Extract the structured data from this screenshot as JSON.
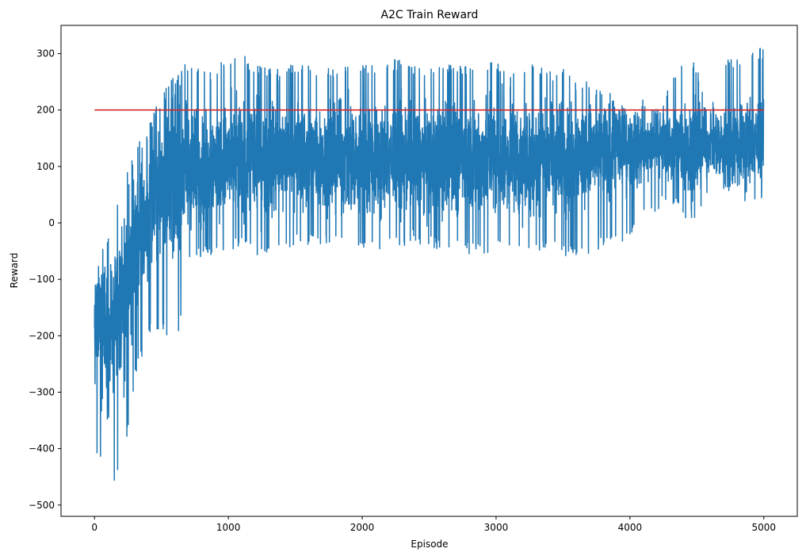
{
  "chart_data": {
    "type": "line",
    "title": "A2C Train Reward",
    "xlabel": "Episode",
    "ylabel": "Reward",
    "xlim": [
      -250,
      5250
    ],
    "ylim": [
      -520,
      350
    ],
    "x_ticks": [
      0,
      1000,
      2000,
      3000,
      4000,
      5000
    ],
    "x_tick_labels": [
      "0",
      "1000",
      "2000",
      "3000",
      "4000",
      "5000"
    ],
    "y_ticks": [
      -500,
      -400,
      -300,
      -200,
      -100,
      0,
      100,
      200,
      300
    ],
    "y_tick_labels": [
      "−500",
      "−400",
      "−300",
      "−200",
      "−100",
      "0",
      "100",
      "200",
      "300"
    ],
    "grid": false,
    "series": [
      {
        "role": "train-reward",
        "color": "#1f77b4",
        "episodes": 5000,
        "x_step": 100,
        "center": [
          -180,
          -200,
          -150,
          -50,
          20,
          80,
          90,
          95,
          100,
          105,
          110,
          110,
          110,
          115,
          115,
          115,
          115,
          115,
          115,
          115,
          115,
          115,
          115,
          115,
          115,
          115,
          115,
          115,
          115,
          115,
          115,
          115,
          115,
          115,
          115,
          115,
          120,
          125,
          125,
          130,
          130,
          130,
          135,
          135,
          135,
          135,
          140,
          140,
          140,
          145
        ],
        "low": [
          -400,
          -470,
          -450,
          -280,
          -200,
          -190,
          -250,
          -80,
          -60,
          -60,
          -50,
          -40,
          -60,
          -60,
          -50,
          -40,
          -40,
          -40,
          -30,
          -50,
          -50,
          -50,
          -40,
          -40,
          -40,
          -40,
          -50,
          -50,
          -55,
          -55,
          -50,
          -40,
          -50,
          -50,
          -45,
          -60,
          -60,
          -60,
          -40,
          -40,
          -30,
          10,
          20,
          40,
          5,
          10,
          50,
          50,
          50,
          30
        ],
        "high": [
          -70,
          -30,
          60,
          130,
          170,
          230,
          260,
          290,
          270,
          270,
          300,
          300,
          280,
          280,
          270,
          285,
          285,
          270,
          280,
          280,
          280,
          280,
          290,
          290,
          280,
          270,
          290,
          280,
          280,
          290,
          285,
          270,
          280,
          280,
          270,
          275,
          250,
          250,
          240,
          220,
          190,
          220,
          200,
          250,
          300,
          280,
          200,
          290,
          290,
          310
        ]
      },
      {
        "role": "target-line",
        "color": "#d62728",
        "x": [
          0,
          5000
        ],
        "y": [
          200,
          200
        ]
      }
    ]
  }
}
